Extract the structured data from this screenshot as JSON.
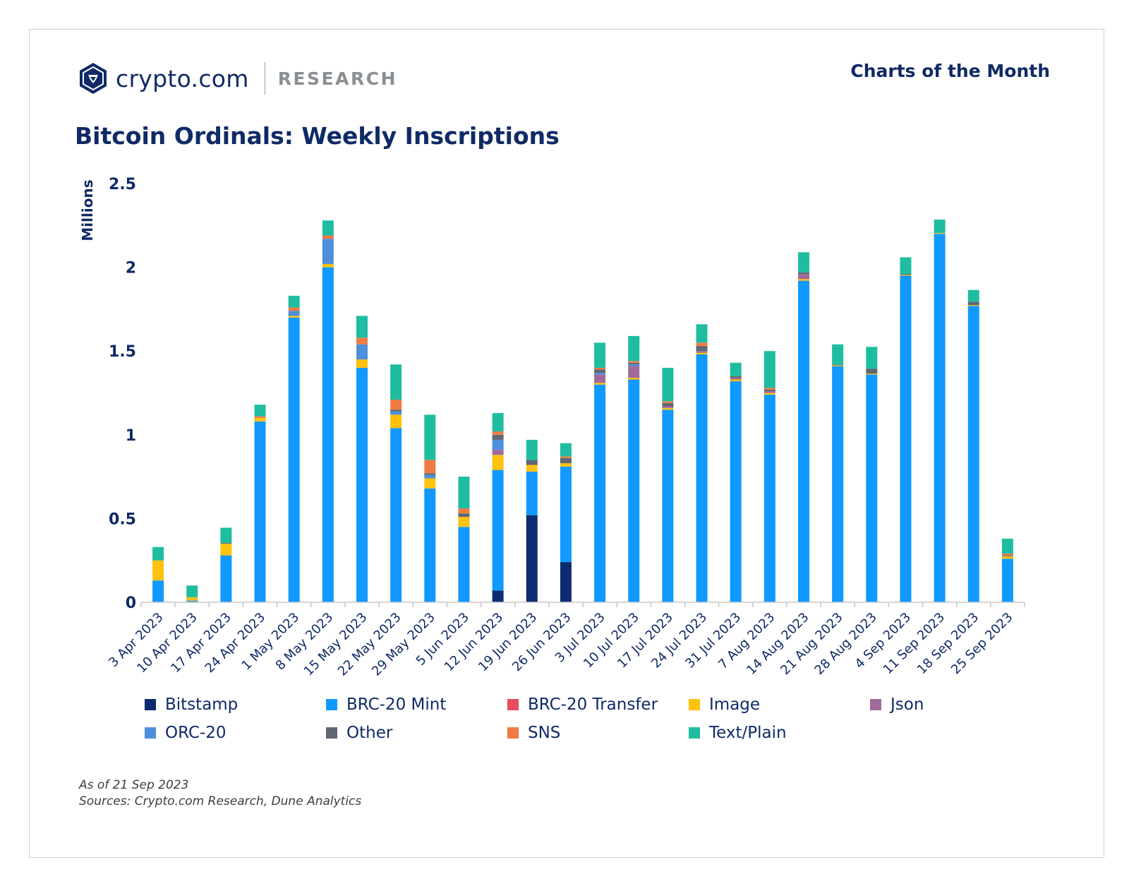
{
  "header": {
    "brand_name": "crypto.com",
    "brand_section": "RESEARCH",
    "right_title": "Charts of the Month"
  },
  "footer": {
    "as_of": "As of 21 Sep 2023",
    "sources": "Sources: Crypto.com Research, Dune Analytics"
  },
  "chart_data": {
    "type": "bar",
    "stacked": true,
    "title": "Bitcoin Ordinals: Weekly Inscriptions",
    "ylabel": "Millions",
    "xlabel": "",
    "ylim": [
      0,
      2.5
    ],
    "yticks": [
      0,
      0.5,
      1,
      1.5,
      2,
      2.5
    ],
    "ytick_labels": [
      "0",
      "0.5",
      "1",
      "1.5",
      "2",
      "2.5"
    ],
    "grid": false,
    "legend_position": "bottom",
    "categories": [
      "3 Apr 2023",
      "10 Apr 2023",
      "17 Apr 2023",
      "24 Apr 2023",
      "1 May 2023",
      "8 May 2023",
      "15 May 2023",
      "22 May 2023",
      "29 May 2023",
      "5 Jun 2023",
      "12 Jun 2023",
      "19 Jun 2023",
      "26 Jun 2023",
      "3 Jul 2023",
      "10 Jul 2023",
      "17 Jul 2023",
      "24 Jul 2023",
      "31 Jul 2023",
      "7 Aug 2023",
      "14 Aug 2023",
      "21 Aug 2023",
      "28 Aug 2023",
      "4 Sep 2023",
      "11 Sep 2023",
      "18 Sep 2023",
      "25 Sep 2023"
    ],
    "series": [
      {
        "name": "Bitstamp",
        "color": "#0d2c6f",
        "values": [
          0,
          0,
          0,
          0,
          0,
          0,
          0,
          0,
          0,
          0,
          0.07,
          0.52,
          0.24,
          0,
          0,
          0,
          0,
          0,
          0,
          0,
          0,
          0,
          0,
          0,
          0,
          0
        ]
      },
      {
        "name": "BRC-20 Mint",
        "color": "#1199ff",
        "values": [
          0.13,
          0.01,
          0.28,
          1.08,
          1.7,
          2.0,
          1.4,
          1.04,
          0.68,
          0.45,
          0.72,
          0.26,
          0.57,
          1.3,
          1.33,
          1.15,
          1.48,
          1.32,
          1.24,
          1.92,
          1.41,
          1.36,
          1.95,
          2.2,
          1.77,
          0.26
        ]
      },
      {
        "name": "BRC-20 Transfer",
        "color": "#e84d5e",
        "values": [
          0,
          0,
          0,
          0,
          0,
          0,
          0,
          0,
          0,
          0,
          0,
          0,
          0,
          0,
          0,
          0,
          0,
          0,
          0,
          0,
          0,
          0,
          0,
          0,
          0,
          0
        ]
      },
      {
        "name": "Image",
        "color": "#ffc20e",
        "values": [
          0.12,
          0.02,
          0.07,
          0.02,
          0.01,
          0.02,
          0.05,
          0.08,
          0.06,
          0.06,
          0.09,
          0.04,
          0.02,
          0.01,
          0.01,
          0.01,
          0.01,
          0.01,
          0.01,
          0.01,
          0.005,
          0.005,
          0.005,
          0.005,
          0.005,
          0.015
        ]
      },
      {
        "name": "Json",
        "color": "#a06a9b",
        "values": [
          0,
          0,
          0,
          0,
          0,
          0,
          0,
          0,
          0,
          0,
          0.03,
          0,
          0,
          0.05,
          0.07,
          0.01,
          0.01,
          0.01,
          0.01,
          0.03,
          0,
          0,
          0,
          0,
          0,
          0
        ]
      },
      {
        "name": "ORC-20",
        "color": "#4d8fdb",
        "values": [
          0,
          0,
          0,
          0,
          0.03,
          0.15,
          0.09,
          0.02,
          0.02,
          0,
          0.06,
          0,
          0,
          0.01,
          0.01,
          0,
          0,
          0,
          0,
          0,
          0,
          0,
          0,
          0,
          0,
          0
        ]
      },
      {
        "name": "Other",
        "color": "#5f6771",
        "values": [
          0,
          0,
          0.005,
          0,
          0,
          0,
          0,
          0.01,
          0.01,
          0.02,
          0.03,
          0.03,
          0.03,
          0.02,
          0.01,
          0.02,
          0.03,
          0.01,
          0.01,
          0.01,
          0.005,
          0.03,
          0.005,
          0,
          0.02,
          0.005
        ]
      },
      {
        "name": "SNS",
        "color": "#f07a43",
        "values": [
          0,
          0,
          0,
          0.01,
          0.02,
          0.02,
          0.04,
          0.06,
          0.08,
          0.03,
          0.02,
          0,
          0.01,
          0.01,
          0.01,
          0.01,
          0.02,
          0,
          0.01,
          0,
          0,
          0,
          0,
          0,
          0,
          0.01
        ]
      },
      {
        "name": "Text/Plain",
        "color": "#1fbda0",
        "values": [
          0.08,
          0.07,
          0.09,
          0.07,
          0.07,
          0.09,
          0.13,
          0.21,
          0.27,
          0.19,
          0.11,
          0.12,
          0.08,
          0.15,
          0.15,
          0.2,
          0.11,
          0.08,
          0.22,
          0.12,
          0.12,
          0.13,
          0.1,
          0.08,
          0.07,
          0.09
        ]
      }
    ]
  }
}
